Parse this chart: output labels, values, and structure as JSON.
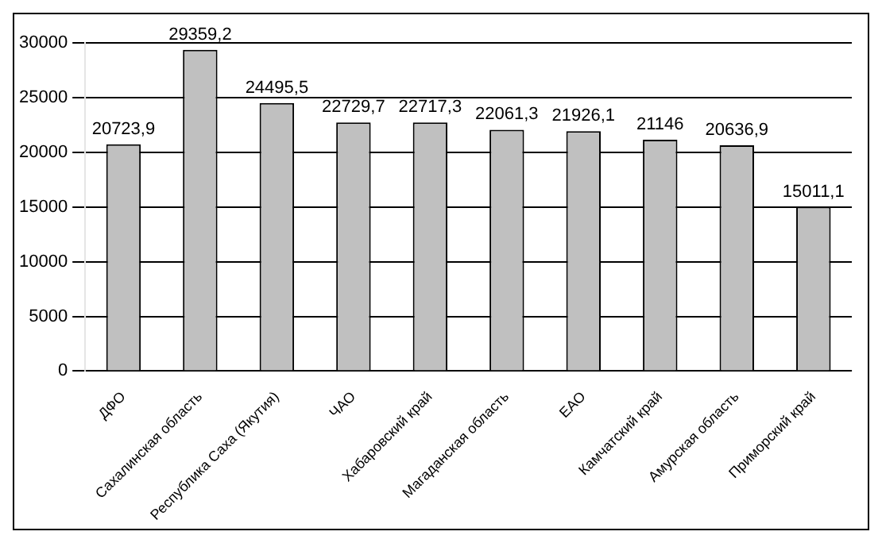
{
  "chart_data": {
    "type": "bar",
    "categories": [
      "ДФО",
      "Сахалинская область",
      "Республика Саха (Якутия)",
      "ЧАО",
      "Хабаровский край",
      "Магаданская область",
      "ЕАО",
      "Камчатский край",
      "Амурская область",
      "Приморский край"
    ],
    "values": [
      20723.9,
      29359.2,
      24495.5,
      22729.7,
      22717.3,
      22061.3,
      21926.1,
      21146,
      20636.9,
      15011.1
    ],
    "value_labels": [
      "20723,9",
      "29359,2",
      "24495,5",
      "22729,7",
      "22717,3",
      "22061,3",
      "21926,1",
      "21146",
      "20636,9",
      "15011,1"
    ],
    "color": "#c0c0c0",
    "ylim": [
      0,
      30000
    ],
    "yticks": [
      0,
      5000,
      10000,
      15000,
      20000,
      25000,
      30000
    ],
    "grid": "y"
  }
}
